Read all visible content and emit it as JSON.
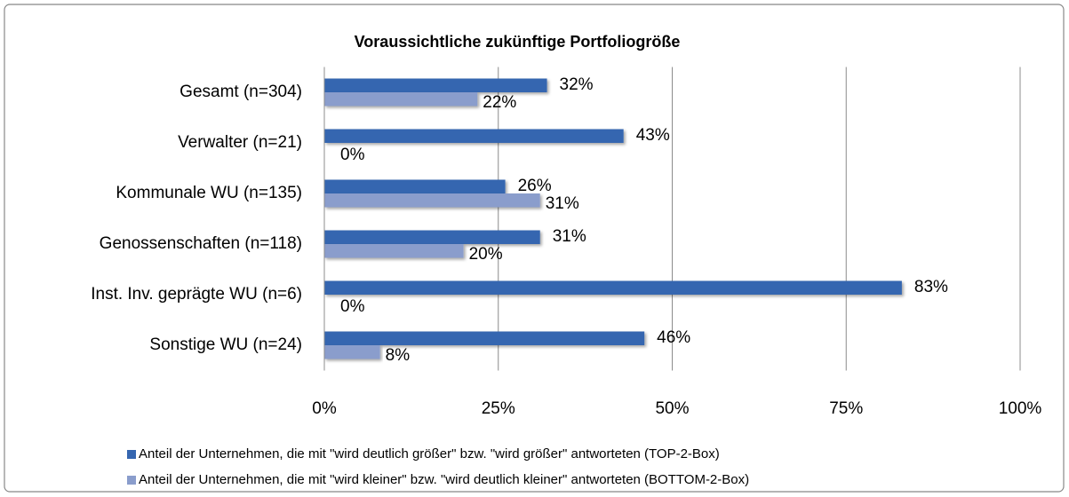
{
  "chart_data": {
    "type": "bar",
    "orientation": "horizontal",
    "title": "Voraussichtliche zukünftige Portfoliogröße",
    "categories": [
      "Gesamt (n=304)",
      "Verwalter (n=21)",
      "Kommunale WU (n=135)",
      "Genossenschaften (n=118)",
      "Inst. Inv. geprägte WU (n=6)",
      "Sonstige WU (n=24)"
    ],
    "series": [
      {
        "name": "Anteil der Unternehmen, die mit \"wird deutlich größer\" bzw. \"wird größer\" antworteten (TOP-2-Box)",
        "color": "#3566b0",
        "values": [
          32,
          43,
          26,
          31,
          83,
          46
        ],
        "value_labels": [
          "32%",
          "43%",
          "26%",
          "31%",
          "83%",
          "46%"
        ]
      },
      {
        "name": "Anteil der Unternehmen, die mit \"wird kleiner\" bzw. \"wird deutlich kleiner\" antworteten (BOTTOM-2-Box)",
        "color": "#8a9dcc",
        "values": [
          22,
          0,
          31,
          20,
          0,
          8
        ],
        "value_labels": [
          "22%",
          "0%",
          "31%",
          "20%",
          "0%",
          "8%"
        ]
      }
    ],
    "xlim": [
      0,
      100
    ],
    "xticks": [
      {
        "value": 0,
        "label": "0%"
      },
      {
        "value": 25,
        "label": "25%"
      },
      {
        "value": 50,
        "label": "50%"
      },
      {
        "value": 75,
        "label": "75%"
      },
      {
        "value": 100,
        "label": "100%"
      }
    ],
    "grid": true,
    "legend": "bottom"
  }
}
